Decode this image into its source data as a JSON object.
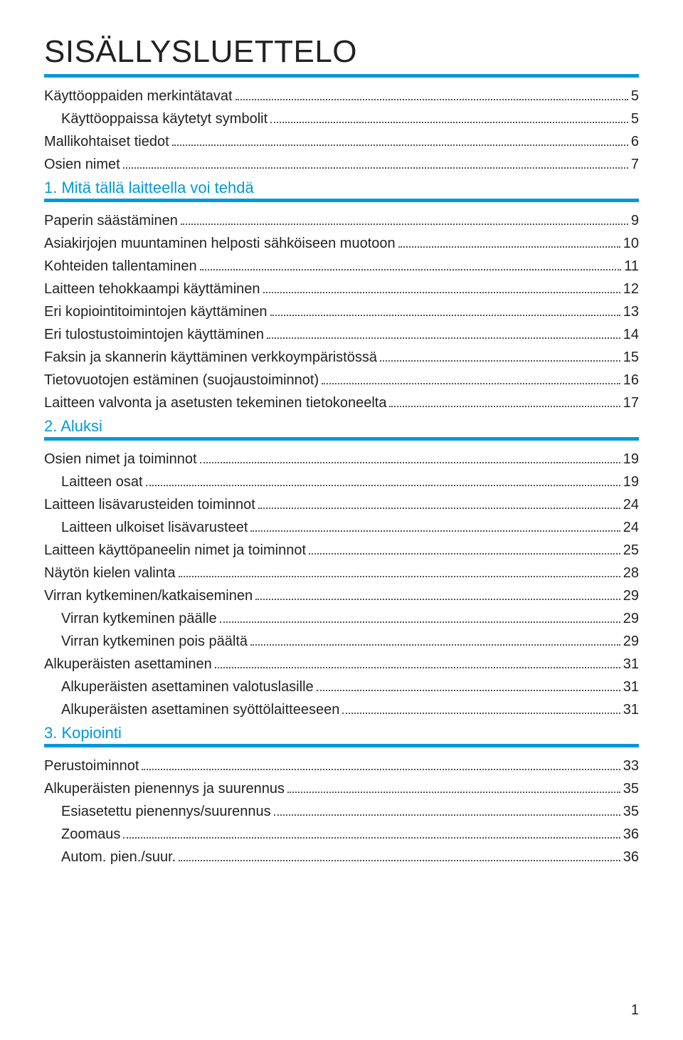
{
  "colors": {
    "accent": "#0099d8",
    "text": "#222222",
    "background": "#ffffff",
    "dots": "#555555"
  },
  "typography": {
    "title_fontsize": 44,
    "section_fontsize": 22,
    "line_fontsize": 20
  },
  "page": {
    "title": "SISÄLLYSLUETTELO",
    "number": "1"
  },
  "toc": {
    "block1": [
      {
        "label": "Käyttöoppaiden merkintätavat",
        "page": "5",
        "indent": 0
      },
      {
        "label": "Käyttöoppaissa käytetyt symbolit",
        "page": "5",
        "indent": 1
      },
      {
        "label": "Mallikohtaiset tiedot",
        "page": "6",
        "indent": 0
      },
      {
        "label": "Osien nimet",
        "page": "7",
        "indent": 0
      }
    ],
    "section1": {
      "heading": "1. Mitä tällä laitteella voi tehdä"
    },
    "block2": [
      {
        "label": "Paperin säästäminen",
        "page": "9",
        "indent": 0
      },
      {
        "label": "Asiakirjojen muuntaminen helposti sähköiseen muotoon",
        "page": "10",
        "indent": 0
      },
      {
        "label": "Kohteiden tallentaminen",
        "page": "11",
        "indent": 0
      },
      {
        "label": "Laitteen tehokkaampi käyttäminen",
        "page": "12",
        "indent": 0
      },
      {
        "label": "Eri kopiointitoimintojen käyttäminen",
        "page": "13",
        "indent": 0
      },
      {
        "label": "Eri tulostustoimintojen käyttäminen",
        "page": "14",
        "indent": 0
      },
      {
        "label": "Faksin ja skannerin käyttäminen verkkoympäristössä",
        "page": "15",
        "indent": 0
      },
      {
        "label": "Tietovuotojen estäminen (suojaustoiminnot)",
        "page": "16",
        "indent": 0
      },
      {
        "label": "Laitteen valvonta ja asetusten tekeminen tietokoneelta",
        "page": "17",
        "indent": 0
      }
    ],
    "section2": {
      "heading": "2. Aluksi"
    },
    "block3": [
      {
        "label": "Osien nimet ja toiminnot",
        "page": "19",
        "indent": 0
      },
      {
        "label": "Laitteen osat",
        "page": "19",
        "indent": 1
      },
      {
        "label": "Laitteen lisävarusteiden toiminnot",
        "page": "24",
        "indent": 0
      },
      {
        "label": "Laitteen ulkoiset lisävarusteet ",
        "page": "24",
        "indent": 1
      },
      {
        "label": "Laitteen käyttöpaneelin nimet ja toiminnot",
        "page": "25",
        "indent": 0
      },
      {
        "label": "Näytön kielen valinta",
        "page": "28",
        "indent": 0
      },
      {
        "label": "Virran kytkeminen/katkaiseminen",
        "page": "29",
        "indent": 0
      },
      {
        "label": "Virran kytkeminen päälle",
        "page": "29",
        "indent": 1
      },
      {
        "label": "Virran kytkeminen pois päältä",
        "page": "29",
        "indent": 1
      },
      {
        "label": "Alkuperäisten asettaminen",
        "page": "31",
        "indent": 0
      },
      {
        "label": "Alkuperäisten asettaminen valotuslasille",
        "page": "31",
        "indent": 1
      },
      {
        "label": "Alkuperäisten asettaminen syöttölaitteeseen",
        "page": "31",
        "indent": 1
      }
    ],
    "section3": {
      "heading": "3. Kopiointi"
    },
    "block4": [
      {
        "label": "Perustoiminnot",
        "page": "33",
        "indent": 0
      },
      {
        "label": "Alkuperäisten pienennys ja suurennus",
        "page": "35",
        "indent": 0
      },
      {
        "label": "Esiasetettu pienennys/suurennus",
        "page": "35",
        "indent": 1
      },
      {
        "label": "Zoomaus",
        "page": "36",
        "indent": 1
      },
      {
        "label": "Autom. pien./suur.",
        "page": "36",
        "indent": 1
      }
    ]
  }
}
